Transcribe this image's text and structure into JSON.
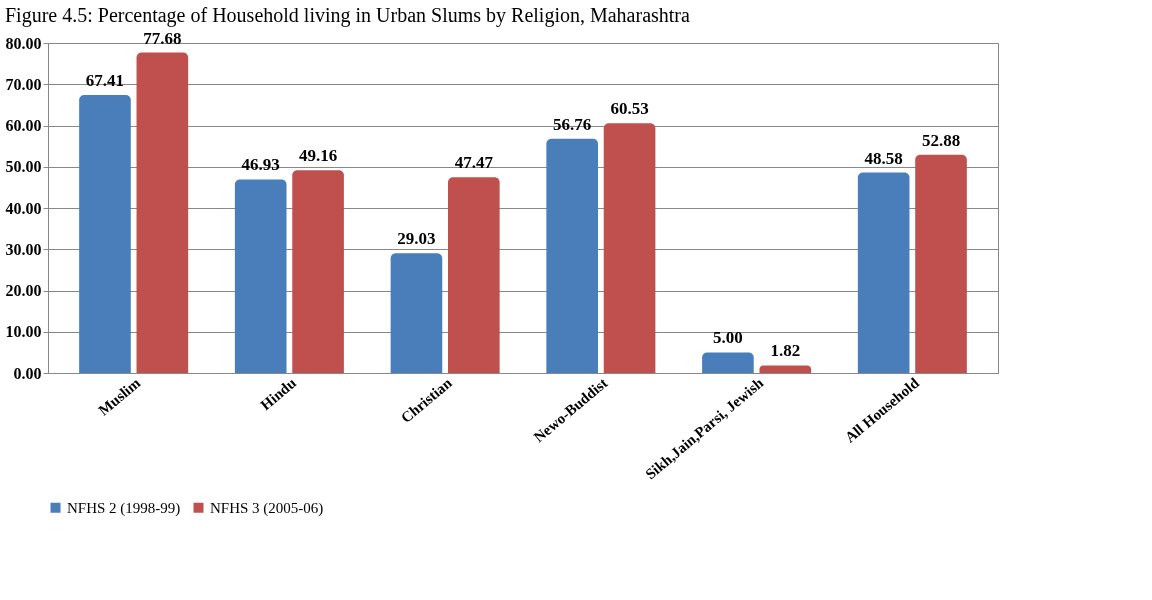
{
  "chart_data": {
    "type": "bar",
    "title": "Figure 4.5: Percentage of Household living in Urban Slums by Religion, Maharashtra",
    "categories": [
      "Muslim",
      "Hindu",
      "Christian",
      "Newo-Buddist",
      "Sikh,Jain,Parsi, Jewish",
      "All Household"
    ],
    "series": [
      {
        "name": "NFHS 2 (1998-99)",
        "color": "#4a7ebb",
        "values": [
          67.41,
          46.93,
          29.03,
          56.76,
          5.0,
          48.58
        ]
      },
      {
        "name": "NFHS 3 (2005-06)",
        "color": "#c0504d",
        "values": [
          77.68,
          49.16,
          47.47,
          60.53,
          1.82,
          52.88
        ]
      }
    ],
    "value_labels": [
      [
        "67.41",
        "46.93",
        "29.03",
        "56.76",
        "5.00",
        "48.58"
      ],
      [
        "77.68",
        "49.16",
        "47.47",
        "60.53",
        "1.82",
        "52.88"
      ]
    ],
    "ylim": [
      0,
      80
    ],
    "yticks": [
      {
        "value": 0,
        "label": "0.00"
      },
      {
        "value": 10,
        "label": "10.00"
      },
      {
        "value": 20,
        "label": "20.00"
      },
      {
        "value": 30,
        "label": "30.00"
      },
      {
        "value": 40,
        "label": "40.00"
      },
      {
        "value": 50,
        "label": "50.00"
      },
      {
        "value": 60,
        "label": "60.00"
      },
      {
        "value": 70,
        "label": "70.00"
      },
      {
        "value": 80,
        "label": "80.00"
      }
    ],
    "grid": "y",
    "legend": "bottom"
  }
}
